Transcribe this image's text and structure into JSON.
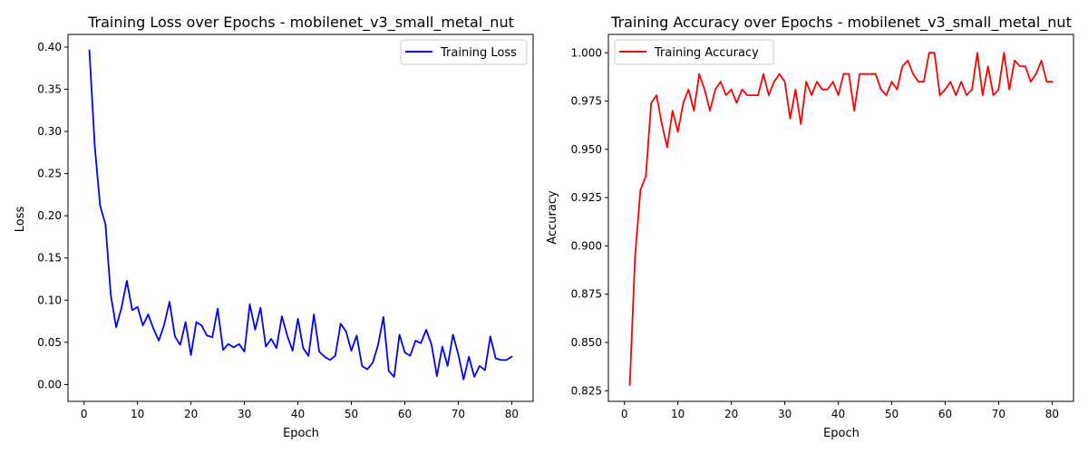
{
  "chart_data": [
    {
      "type": "line",
      "title": "Training Loss over Epochs - mobilenet_v3_small_metal_nut",
      "xlabel": "Epoch",
      "ylabel": "Loss",
      "xlim": [
        -3,
        84
      ],
      "ylim": [
        -0.02,
        0.415
      ],
      "xticks": [
        0,
        10,
        20,
        30,
        40,
        50,
        60,
        70,
        80
      ],
      "yticks": [
        0.0,
        0.05,
        0.1,
        0.15,
        0.2,
        0.25,
        0.3,
        0.35,
        0.4
      ],
      "ytick_labels": [
        "0.00",
        "0.05",
        "0.10",
        "0.15",
        "0.20",
        "0.25",
        "0.30",
        "0.35",
        "0.40"
      ],
      "legend": "upper-right",
      "grid": false,
      "series": [
        {
          "name": "Training Loss",
          "color": "#0000ff",
          "x": [
            1,
            2,
            3,
            4,
            5,
            6,
            7,
            8,
            9,
            10,
            11,
            12,
            13,
            14,
            15,
            16,
            17,
            18,
            19,
            20,
            21,
            22,
            23,
            24,
            25,
            26,
            27,
            28,
            29,
            30,
            31,
            32,
            33,
            34,
            35,
            36,
            37,
            38,
            39,
            40,
            41,
            42,
            43,
            44,
            45,
            46,
            47,
            48,
            49,
            50,
            51,
            52,
            53,
            54,
            55,
            56,
            57,
            58,
            59,
            60,
            61,
            62,
            63,
            64,
            65,
            66,
            67,
            68,
            69,
            70,
            71,
            72,
            73,
            74,
            75,
            76,
            77,
            78,
            79,
            80
          ],
          "values": [
            0.396,
            0.283,
            0.212,
            0.19,
            0.106,
            0.068,
            0.091,
            0.123,
            0.088,
            0.092,
            0.07,
            0.083,
            0.066,
            0.052,
            0.071,
            0.098,
            0.057,
            0.047,
            0.074,
            0.035,
            0.074,
            0.07,
            0.058,
            0.056,
            0.09,
            0.041,
            0.048,
            0.044,
            0.048,
            0.039,
            0.095,
            0.065,
            0.091,
            0.045,
            0.054,
            0.043,
            0.081,
            0.058,
            0.04,
            0.078,
            0.043,
            0.034,
            0.083,
            0.039,
            0.033,
            0.029,
            0.034,
            0.072,
            0.063,
            0.04,
            0.058,
            0.022,
            0.018,
            0.026,
            0.047,
            0.08,
            0.016,
            0.009,
            0.059,
            0.038,
            0.034,
            0.052,
            0.049,
            0.065,
            0.047,
            0.01,
            0.045,
            0.022,
            0.059,
            0.036,
            0.006,
            0.033,
            0.009,
            0.022,
            0.017,
            0.057,
            0.031,
            0.029,
            0.029,
            0.033
          ]
        }
      ]
    },
    {
      "type": "line",
      "title": "Training Accuracy over Epochs - mobilenet_v3_small_metal_nut",
      "xlabel": "Epoch",
      "ylabel": "Accuracy",
      "xlim": [
        -3,
        84
      ],
      "ylim": [
        0.8195,
        1.0095
      ],
      "xticks": [
        0,
        10,
        20,
        30,
        40,
        50,
        60,
        70,
        80
      ],
      "yticks": [
        0.825,
        0.85,
        0.875,
        0.9,
        0.925,
        0.95,
        0.975,
        1.0
      ],
      "ytick_labels": [
        "0.825",
        "0.850",
        "0.875",
        "0.900",
        "0.925",
        "0.950",
        "0.975",
        "1.000"
      ],
      "legend": "upper-left",
      "grid": false,
      "series": [
        {
          "name": "Training Accuracy",
          "color": "#ff0000",
          "x": [
            1,
            2,
            3,
            4,
            5,
            6,
            7,
            8,
            9,
            10,
            11,
            12,
            13,
            14,
            15,
            16,
            17,
            18,
            19,
            20,
            21,
            22,
            23,
            24,
            25,
            26,
            27,
            28,
            29,
            30,
            31,
            32,
            33,
            34,
            35,
            36,
            37,
            38,
            39,
            40,
            41,
            42,
            43,
            44,
            45,
            46,
            47,
            48,
            49,
            50,
            51,
            52,
            53,
            54,
            55,
            56,
            57,
            58,
            59,
            60,
            61,
            62,
            63,
            64,
            65,
            66,
            67,
            68,
            69,
            70,
            71,
            72,
            73,
            74,
            75,
            76,
            77,
            78,
            79,
            80
          ],
          "values": [
            0.828,
            0.895,
            0.929,
            0.936,
            0.974,
            0.978,
            0.963,
            0.951,
            0.97,
            0.959,
            0.974,
            0.981,
            0.97,
            0.989,
            0.981,
            0.97,
            0.981,
            0.985,
            0.978,
            0.981,
            0.974,
            0.981,
            0.978,
            0.978,
            0.978,
            0.989,
            0.978,
            0.985,
            0.989,
            0.985,
            0.966,
            0.981,
            0.963,
            0.985,
            0.978,
            0.985,
            0.981,
            0.981,
            0.985,
            0.978,
            0.989,
            0.989,
            0.97,
            0.989,
            0.989,
            0.989,
            0.989,
            0.981,
            0.978,
            0.985,
            0.981,
            0.993,
            0.996,
            0.989,
            0.985,
            0.985,
            1.0,
            1.0,
            0.978,
            0.981,
            0.985,
            0.978,
            0.985,
            0.978,
            0.981,
            1.0,
            0.978,
            0.993,
            0.978,
            0.981,
            1.0,
            0.981,
            0.996,
            0.993,
            0.993,
            0.985,
            0.989,
            0.996,
            0.985,
            0.985
          ]
        }
      ]
    }
  ]
}
